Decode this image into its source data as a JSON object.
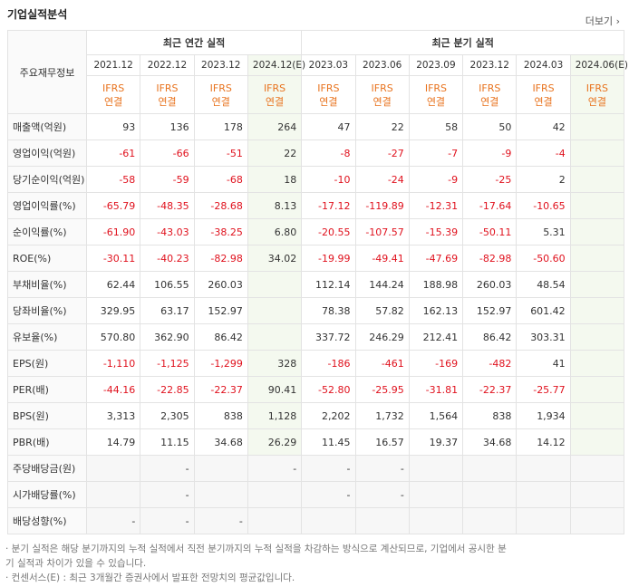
{
  "header": {
    "title": "기업실적분석",
    "more": "더보기"
  },
  "table": {
    "corner": "주요재무정보",
    "groups": [
      "최근 연간 실적",
      "최근 분기 실적"
    ],
    "periods": [
      "2021.12",
      "2022.12",
      "2023.12",
      "2024.12(E)",
      "2023.03",
      "2023.06",
      "2023.09",
      "2023.12",
      "2024.03",
      "2024.06(E)"
    ],
    "basis": [
      [
        "IFRS",
        "연결"
      ],
      [
        "IFRS",
        "연결"
      ],
      [
        "IFRS",
        "연결"
      ],
      [
        "IFRS",
        "연결"
      ],
      [
        "IFRS",
        "연결"
      ],
      [
        "IFRS",
        "연결"
      ],
      [
        "IFRS",
        "연결"
      ],
      [
        "IFRS",
        "연결"
      ],
      [
        "IFRS",
        "연결"
      ],
      [
        "IFRS",
        "연결"
      ]
    ],
    "rows": [
      {
        "label": "매출액(억원)",
        "values": [
          "93",
          "136",
          "178",
          "264",
          "47",
          "22",
          "58",
          "50",
          "42",
          null
        ]
      },
      {
        "label": "영업이익(억원)",
        "values": [
          "-61",
          "-66",
          "-51",
          "22",
          "-8",
          "-27",
          "-7",
          "-9",
          "-4",
          null
        ]
      },
      {
        "label": "당기순이익(억원)",
        "values": [
          "-58",
          "-59",
          "-68",
          "18",
          "-10",
          "-24",
          "-9",
          "-25",
          "2",
          null
        ]
      },
      {
        "label": "영업이익률(%)",
        "values": [
          "-65.79",
          "-48.35",
          "-28.68",
          "8.13",
          "-17.12",
          "-119.89",
          "-12.31",
          "-17.64",
          "-10.65",
          null
        ]
      },
      {
        "label": "순이익률(%)",
        "values": [
          "-61.90",
          "-43.03",
          "-38.25",
          "6.80",
          "-20.55",
          "-107.57",
          "-15.39",
          "-50.11",
          "5.31",
          null
        ]
      },
      {
        "label": "ROE(%)",
        "values": [
          "-30.11",
          "-40.23",
          "-82.98",
          "34.02",
          "-19.99",
          "-49.41",
          "-47.69",
          "-82.98",
          "-50.60",
          null
        ]
      },
      {
        "label": "부채비율(%)",
        "values": [
          "62.44",
          "106.55",
          "260.03",
          null,
          "112.14",
          "144.24",
          "188.98",
          "260.03",
          "48.54",
          null
        ]
      },
      {
        "label": "당좌비율(%)",
        "values": [
          "329.95",
          "63.17",
          "152.97",
          null,
          "78.38",
          "57.82",
          "162.13",
          "152.97",
          "601.42",
          null
        ]
      },
      {
        "label": "유보율(%)",
        "values": [
          "570.80",
          "362.90",
          "86.42",
          null,
          "337.72",
          "246.29",
          "212.41",
          "86.42",
          "303.31",
          null
        ]
      },
      {
        "label": "EPS(원)",
        "values": [
          "-1,110",
          "-1,125",
          "-1,299",
          "328",
          "-186",
          "-461",
          "-169",
          "-482",
          "41",
          null
        ]
      },
      {
        "label": "PER(배)",
        "values": [
          "-44.16",
          "-22.85",
          "-22.37",
          "90.41",
          "-52.80",
          "-25.95",
          "-31.81",
          "-22.37",
          "-25.77",
          null
        ]
      },
      {
        "label": "BPS(원)",
        "values": [
          "3,313",
          "2,305",
          "838",
          "1,128",
          "2,202",
          "1,732",
          "1,564",
          "838",
          "1,934",
          null
        ]
      },
      {
        "label": "PBR(배)",
        "values": [
          "14.79",
          "11.15",
          "34.68",
          "26.29",
          "11.45",
          "16.57",
          "19.37",
          "34.68",
          "14.12",
          null
        ]
      },
      {
        "label": "주당배당금(원)",
        "values": [
          null,
          "-",
          null,
          "-",
          "-",
          "-",
          null,
          null,
          null,
          null
        ]
      },
      {
        "label": "시가배당률(%)",
        "values": [
          null,
          "-",
          null,
          null,
          "-",
          "-",
          null,
          null,
          null,
          null
        ]
      },
      {
        "label": "배당성향(%)",
        "values": [
          "-",
          "-",
          "-",
          null,
          null,
          null,
          null,
          null,
          null,
          null
        ]
      }
    ]
  },
  "notes": [
    "· 분기 실적은 해당 분기까지의 누적 실적에서 직전 분기까지의 누적 실적을 차감하는 방식으로 계산되므로, 기업에서 공시한 분기 실적과 차이가 있을 수 있습니다.",
    "· 컨센서스(E) : 최근 3개월간 증권사에서 발표한 전망치의 평균값입니다."
  ]
}
